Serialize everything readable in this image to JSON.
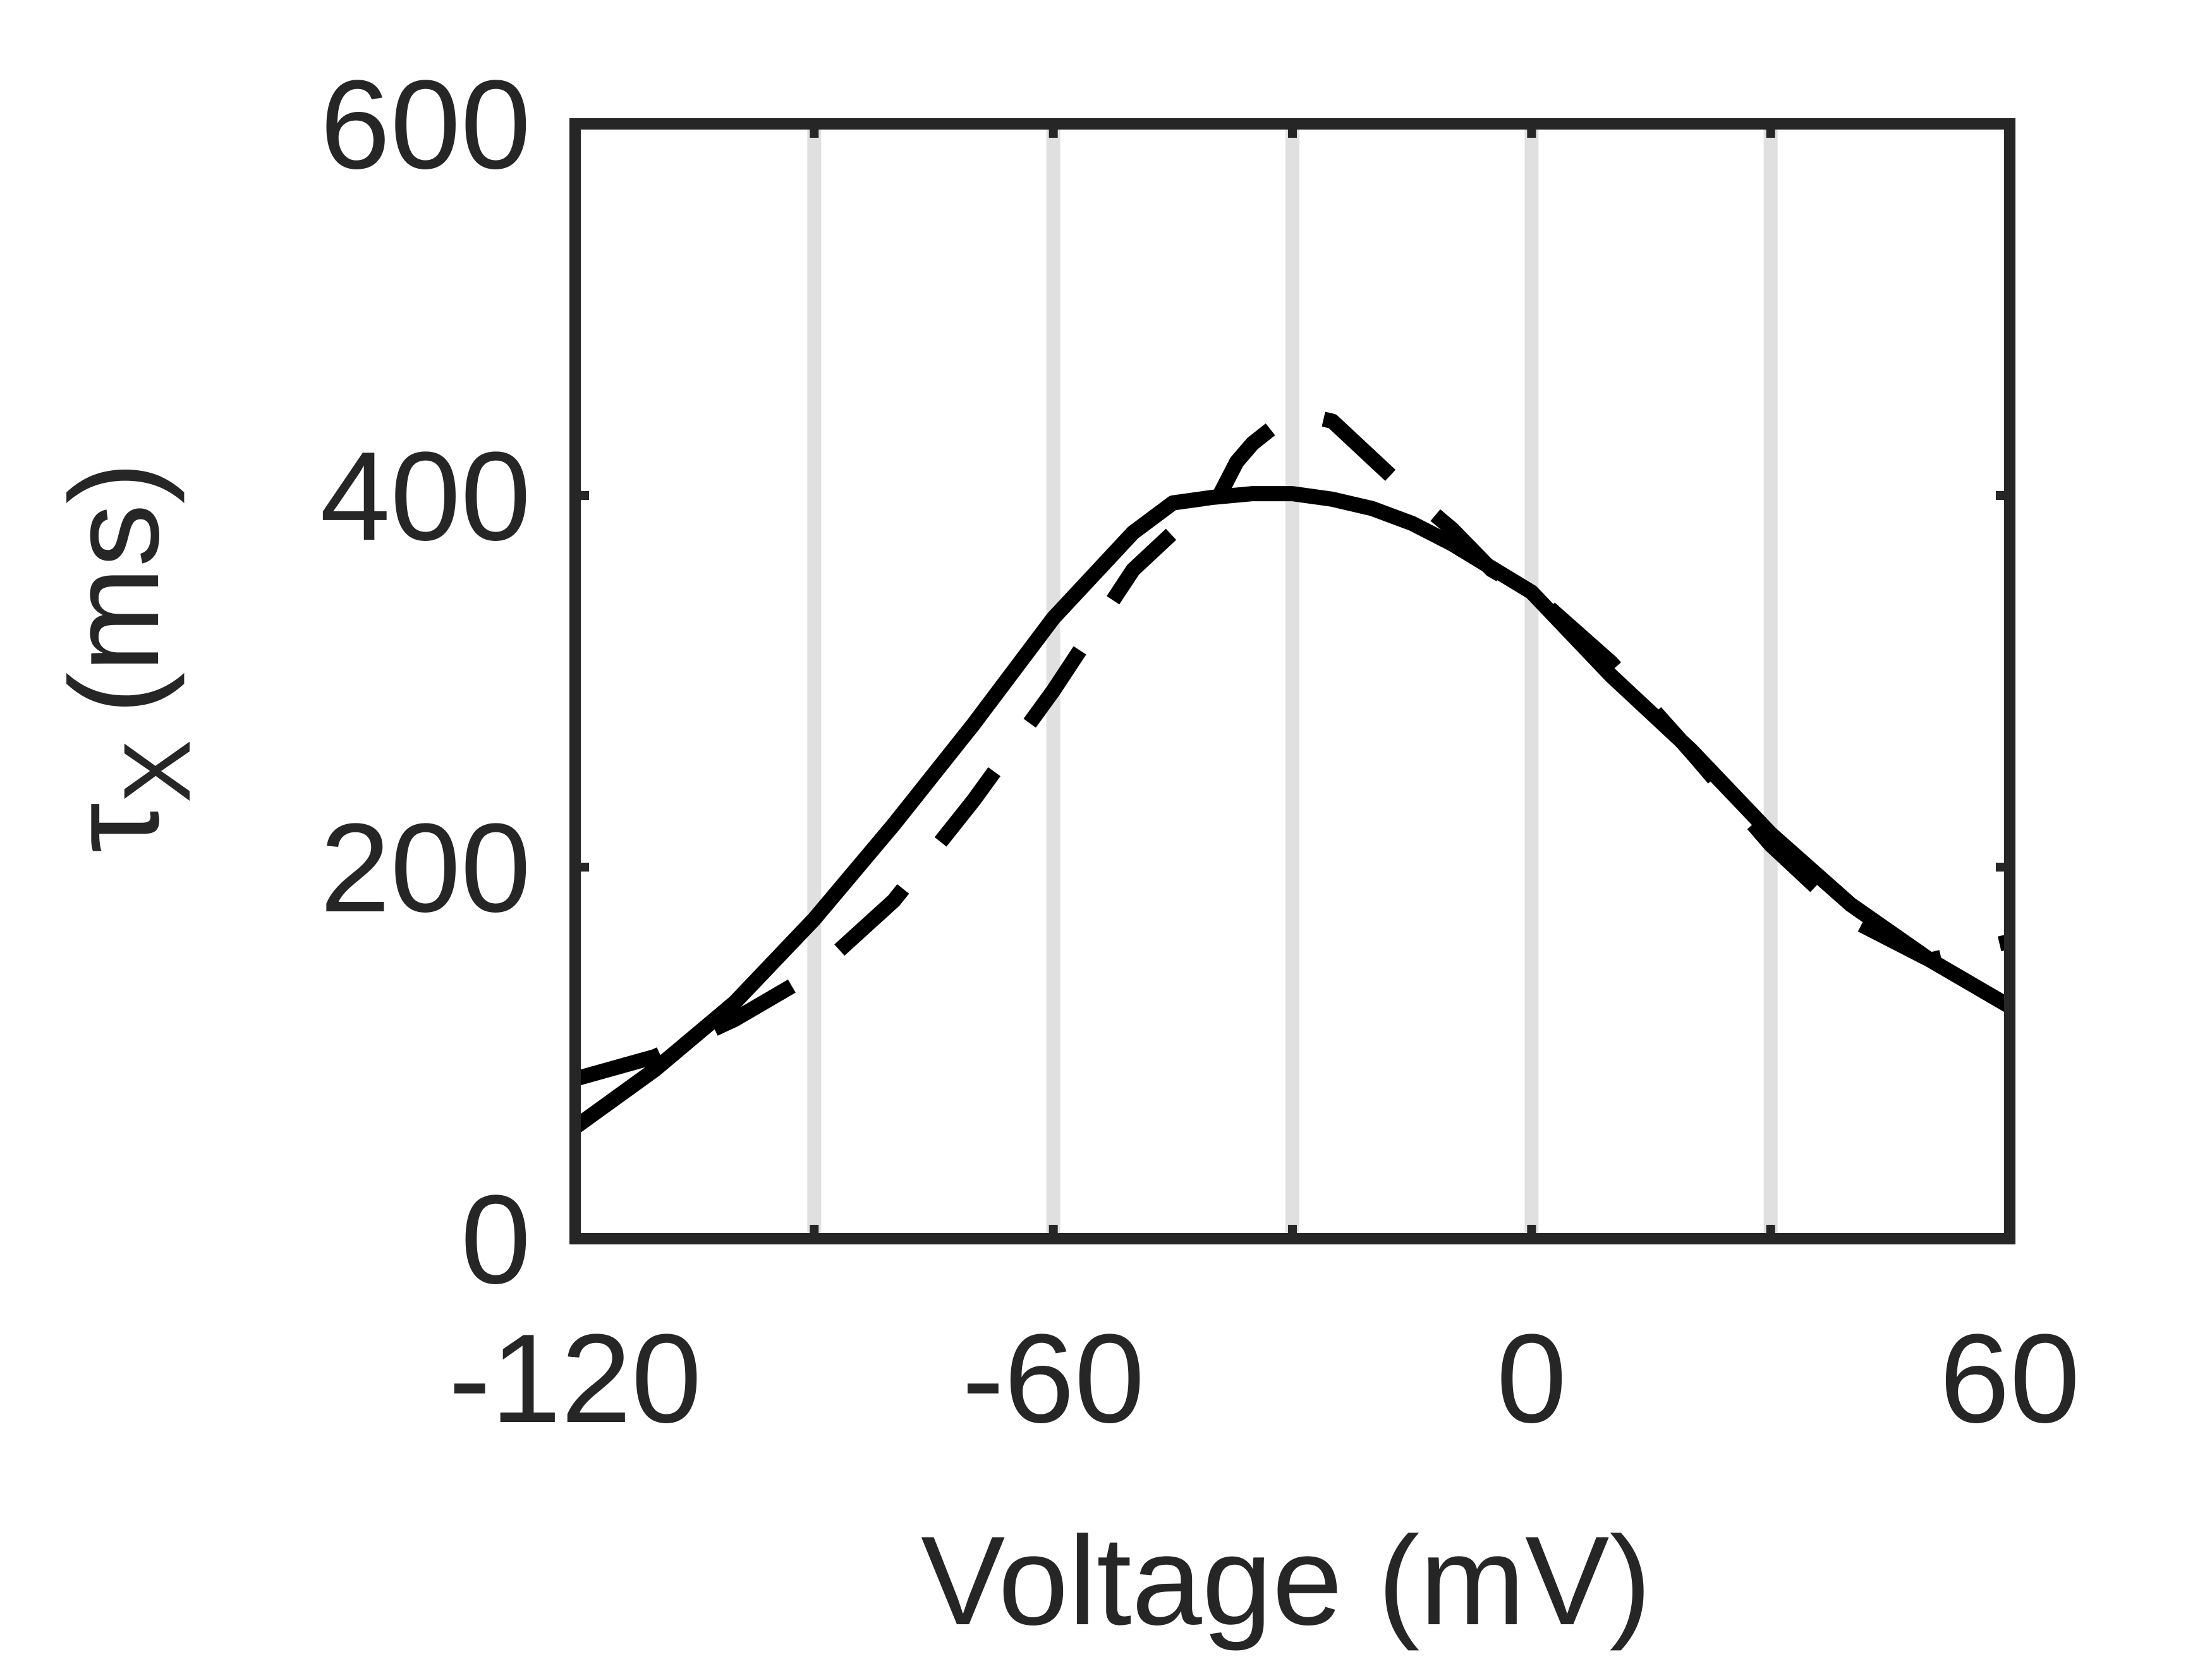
{
  "chart_data": {
    "type": "line",
    "title": "",
    "xlabel": "Voltage (mV)",
    "ylabel_symbol": "τ",
    "ylabel_subscript": "X",
    "ylabel_unit": "(ms)",
    "xlim": [
      -120,
      60
    ],
    "ylim": [
      0,
      600
    ],
    "x_ticks": [
      -120,
      -60,
      0,
      60
    ],
    "x_tick_labels": [
      "-120",
      "-60",
      "0",
      "60"
    ],
    "y_ticks": [
      0,
      200,
      400,
      600
    ],
    "y_tick_labels": [
      "0",
      "200",
      "400",
      "600"
    ],
    "grid": "vertical lines every 30 mV",
    "grid_x": [
      -90,
      -60,
      -30,
      0,
      30
    ],
    "legend": "none",
    "series": [
      {
        "style": "solid",
        "x": [
          -120,
          -110,
          -100,
          -90,
          -80,
          -70,
          -60,
          -50,
          -45,
          -40,
          -35,
          -30,
          -25,
          -20,
          -15,
          -10,
          0,
          10,
          20,
          30,
          40,
          50,
          60
        ],
        "y": [
          60,
          91,
          127,
          172,
          223,
          277,
          334,
          380,
          396,
          399,
          401,
          401,
          398,
          393,
          385,
          374,
          348,
          303,
          263,
          218,
          180,
          150,
          125
        ]
      },
      {
        "style": "dashed",
        "x": [
          -120,
          -110,
          -100,
          -90,
          -80,
          -70,
          -60,
          -50,
          -45,
          -40,
          -37,
          -35,
          -30,
          -25,
          -20,
          -15,
          -10,
          -5,
          0,
          10,
          20,
          30,
          40,
          50,
          60
        ],
        "y": [
          86,
          98,
          118,
          143,
          182,
          236,
          295,
          360,
          380,
          393,
          418,
          428,
          445,
          440,
          420,
          400,
          382,
          360,
          348,
          310,
          262,
          212,
          172,
          150,
          160
        ]
      }
    ],
    "colors": {
      "axis": "#262626",
      "grid": "#e0e0e0",
      "series": "#000000"
    }
  }
}
